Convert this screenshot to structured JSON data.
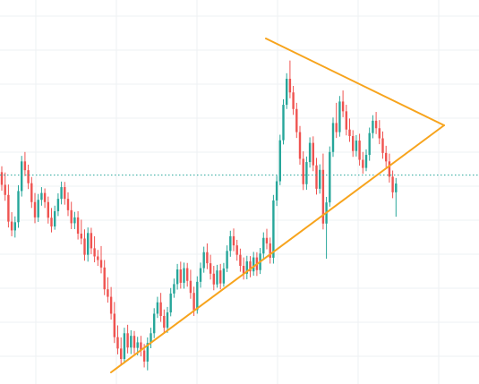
{
  "chart_data": {
    "type": "candlestick",
    "title": "",
    "xlabel": "",
    "ylabel": "",
    "grid": true,
    "ylim": [
      0,
      100
    ],
    "colors": {
      "up": "#26a69a",
      "down": "#ef5350",
      "trendline": "#f7a41d",
      "price_line": "#26a69a"
    },
    "current_price": 61.2,
    "candles": [
      [
        62.1,
        63.9,
        56.4,
        58.2
      ],
      [
        58.2,
        62.0,
        53.3,
        55.1
      ],
      [
        55.1,
        58.3,
        45.1,
        46.9
      ],
      [
        46.9,
        49.8,
        42.4,
        44.2
      ],
      [
        44.2,
        48.5,
        42.0,
        46.7
      ],
      [
        46.7,
        58.1,
        45.0,
        56.3
      ],
      [
        56.3,
        67.1,
        54.6,
        65.4
      ],
      [
        65.4,
        68.3,
        60.9,
        62.7
      ],
      [
        62.7,
        64.4,
        56.9,
        58.7
      ],
      [
        58.7,
        60.6,
        51.1,
        52.9
      ],
      [
        52.9,
        55.7,
        46.4,
        48.2
      ],
      [
        48.2,
        55.4,
        46.8,
        53.6
      ],
      [
        53.6,
        57.5,
        51.8,
        55.7
      ],
      [
        55.7,
        57.1,
        51.1,
        52.9
      ],
      [
        52.9,
        54.6,
        46.3,
        48.1
      ],
      [
        48.1,
        51.1,
        43.6,
        45.4
      ],
      [
        45.4,
        51.8,
        44.4,
        50.1
      ],
      [
        50.1,
        55.6,
        48.6,
        53.9
      ],
      [
        53.9,
        59.2,
        52.2,
        57.5
      ],
      [
        57.5,
        59.1,
        52.1,
        53.9
      ],
      [
        53.9,
        55.9,
        48.6,
        50.4
      ],
      [
        50.4,
        53.0,
        44.6,
        46.4
      ],
      [
        46.4,
        49.9,
        44.6,
        48.2
      ],
      [
        48.2,
        50.1,
        41.4,
        43.2
      ],
      [
        43.2,
        47.5,
        39.9,
        41.7
      ],
      [
        41.7,
        44.5,
        34.9,
        36.7
      ],
      [
        36.7,
        45.1,
        34.6,
        43.4
      ],
      [
        43.4,
        45.0,
        36.9,
        38.7
      ],
      [
        38.7,
        42.4,
        34.4,
        36.2
      ],
      [
        36.2,
        38.2,
        33.3,
        35.1
      ],
      [
        35.1,
        39.4,
        31.0,
        32.8
      ],
      [
        32.8,
        35.1,
        24.3,
        26.1
      ],
      [
        26.1,
        29.8,
        22.0,
        23.8
      ],
      [
        23.8,
        26.8,
        16.8,
        18.6
      ],
      [
        18.6,
        22.2,
        9.6,
        11.4
      ],
      [
        11.4,
        15.0,
        6.1,
        7.9
      ],
      [
        7.9,
        11.3,
        2.9,
        4.7
      ],
      [
        4.7,
        14.3,
        3.3,
        12.6
      ],
      [
        12.6,
        15.2,
        6.4,
        8.2
      ],
      [
        8.2,
        13.5,
        6.2,
        11.8
      ],
      [
        11.8,
        13.3,
        6.3,
        8.1
      ],
      [
        8.1,
        11.5,
        5.8,
        9.8
      ],
      [
        9.8,
        11.8,
        5.5,
        7.3
      ],
      [
        7.3,
        9.3,
        2.1,
        3.9
      ],
      [
        3.9,
        11.3,
        1.2,
        9.6
      ],
      [
        9.6,
        14.3,
        8.0,
        12.6
      ],
      [
        12.6,
        20.3,
        11.1,
        18.6
      ],
      [
        18.6,
        23.8,
        17.3,
        22.1
      ],
      [
        22.1,
        25.0,
        16.1,
        17.9
      ],
      [
        17.9,
        19.9,
        12.5,
        14.3
      ],
      [
        14.3,
        20.7,
        12.7,
        19.0
      ],
      [
        19.0,
        26.5,
        17.8,
        24.8
      ],
      [
        24.8,
        29.4,
        23.5,
        27.7
      ],
      [
        27.7,
        33.9,
        26.0,
        32.2
      ],
      [
        32.2,
        34.6,
        26.3,
        28.1
      ],
      [
        28.1,
        34.3,
        26.3,
        32.6
      ],
      [
        32.6,
        34.2,
        26.9,
        28.7
      ],
      [
        28.7,
        32.1,
        23.2,
        25.0
      ],
      [
        25.0,
        26.9,
        17.9,
        19.7
      ],
      [
        19.7,
        30.1,
        18.6,
        28.4
      ],
      [
        28.4,
        34.3,
        26.6,
        32.6
      ],
      [
        32.6,
        39.2,
        31.2,
        37.5
      ],
      [
        37.5,
        40.2,
        32.3,
        34.1
      ],
      [
        34.1,
        36.7,
        29.1,
        30.9
      ],
      [
        30.9,
        33.3,
        25.8,
        27.6
      ],
      [
        27.6,
        33.6,
        26.6,
        31.9
      ],
      [
        31.9,
        33.9,
        26.1,
        27.9
      ],
      [
        27.9,
        34.2,
        26.9,
        32.5
      ],
      [
        32.5,
        39.6,
        31.4,
        37.9
      ],
      [
        37.9,
        44.1,
        36.1,
        42.4
      ],
      [
        42.4,
        44.8,
        37.8,
        39.6
      ],
      [
        39.6,
        41.3,
        34.9,
        36.7
      ],
      [
        36.7,
        38.6,
        31.5,
        33.3
      ],
      [
        33.3,
        35.9,
        29.1,
        30.9
      ],
      [
        30.9,
        36.4,
        29.2,
        34.7
      ],
      [
        34.7,
        36.3,
        29.8,
        31.6
      ],
      [
        31.6,
        37.6,
        30.3,
        35.9
      ],
      [
        35.9,
        37.5,
        30.2,
        32.0
      ],
      [
        32.0,
        38.8,
        30.8,
        37.1
      ],
      [
        37.1,
        43.6,
        35.4,
        41.9
      ],
      [
        41.9,
        44.7,
        38.4,
        40.2
      ],
      [
        40.2,
        42.0,
        34.0,
        35.8
      ],
      [
        35.8,
        55.1,
        34.0,
        53.4
      ],
      [
        53.4,
        61.0,
        51.7,
        59.3
      ],
      [
        59.3,
        73.6,
        58.1,
        71.9
      ],
      [
        71.9,
        84.5,
        70.6,
        82.8
      ],
      [
        82.8,
        92.5,
        81.5,
        90.8
      ],
      [
        90.8,
        96.4,
        84.8,
        86.6
      ],
      [
        86.6,
        88.6,
        79.7,
        81.5
      ],
      [
        81.5,
        83.4,
        72.6,
        74.4
      ],
      [
        74.4,
        76.3,
        64.4,
        66.2
      ],
      [
        66.2,
        68.5,
        56.6,
        58.4
      ],
      [
        58.4,
        66.9,
        56.7,
        65.2
      ],
      [
        65.2,
        72.8,
        63.5,
        71.1
      ],
      [
        71.1,
        73.1,
        62.4,
        64.2
      ],
      [
        64.2,
        66.5,
        55.2,
        57.0
      ],
      [
        57.0,
        64.5,
        55.5,
        62.8
      ],
      [
        62.8,
        67.8,
        44.5,
        46.3
      ],
      [
        46.3,
        54.5,
        35.5,
        52.8
      ],
      [
        52.8,
        70.0,
        51.5,
        68.3
      ],
      [
        68.3,
        78.9,
        66.8,
        77.2
      ],
      [
        77.2,
        83.4,
        72.6,
        74.4
      ],
      [
        74.4,
        85.5,
        73.0,
        83.8
      ],
      [
        83.8,
        87.2,
        79.0,
        80.8
      ],
      [
        80.8,
        82.8,
        73.4,
        75.2
      ],
      [
        75.2,
        78.6,
        71.4,
        73.2
      ],
      [
        73.2,
        75.0,
        66.8,
        68.6
      ],
      [
        68.6,
        73.5,
        66.9,
        71.8
      ],
      [
        71.8,
        73.9,
        64.1,
        65.9
      ],
      [
        65.9,
        68.3,
        61.6,
        63.4
      ],
      [
        63.4,
        69.1,
        62.4,
        67.4
      ],
      [
        67.4,
        75.8,
        65.6,
        74.1
      ],
      [
        74.1,
        79.6,
        72.5,
        77.9
      ],
      [
        77.9,
        80.6,
        73.8,
        75.6
      ],
      [
        75.6,
        78.1,
        70.7,
        72.5
      ],
      [
        72.5,
        74.6,
        66.2,
        68.0
      ],
      [
        68.0,
        70.2,
        63.6,
        65.4
      ],
      [
        65.4,
        67.8,
        58.9,
        60.7
      ],
      [
        60.7,
        62.6,
        54.1,
        55.9
      ],
      [
        55.9,
        60.3,
        48.4,
        58.6
      ]
    ],
    "trendlines": [
      {
        "name": "upper",
        "points": [
          [
            -1,
            100
          ],
          [
            24,
            78
          ]
        ]
      },
      {
        "name": "lower",
        "points": [
          [
            -1,
            0
          ],
          [
            24,
            78
          ]
        ]
      }
    ],
    "x_range": [
      -39.5,
      28
    ],
    "y_range": [
      -3,
      115
    ]
  }
}
